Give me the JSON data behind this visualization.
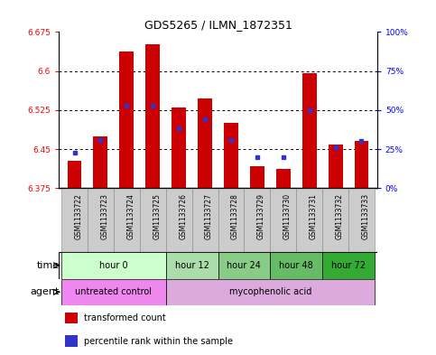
{
  "title": "GDS5265 / ILMN_1872351",
  "samples": [
    "GSM1133722",
    "GSM1133723",
    "GSM1133724",
    "GSM1133725",
    "GSM1133726",
    "GSM1133727",
    "GSM1133728",
    "GSM1133729",
    "GSM1133730",
    "GSM1133731",
    "GSM1133732",
    "GSM1133733"
  ],
  "bar_values": [
    6.428,
    6.475,
    6.637,
    6.652,
    6.53,
    6.548,
    6.5,
    6.418,
    6.412,
    6.595,
    6.458,
    6.465
  ],
  "percentile_values": [
    6.443,
    6.468,
    6.533,
    6.533,
    6.49,
    6.508,
    6.468,
    6.435,
    6.435,
    6.525,
    6.453,
    6.465
  ],
  "bar_bottom": 6.375,
  "y_min": 6.375,
  "y_max": 6.675,
  "y_ticks": [
    6.375,
    6.45,
    6.525,
    6.6,
    6.675
  ],
  "y_right_ticks": [
    0,
    25,
    50,
    75,
    100
  ],
  "bar_color": "#cc0000",
  "blue_color": "#3333cc",
  "time_groups": [
    {
      "label": "hour 0",
      "start": 0,
      "end": 4
    },
    {
      "label": "hour 12",
      "start": 4,
      "end": 6
    },
    {
      "label": "hour 24",
      "start": 6,
      "end": 8
    },
    {
      "label": "hour 48",
      "start": 8,
      "end": 10
    },
    {
      "label": "hour 72",
      "start": 10,
      "end": 12
    }
  ],
  "time_colors": [
    "#ccffcc",
    "#aaddaa",
    "#88cc88",
    "#66bb66",
    "#33aa33"
  ],
  "agent_groups": [
    {
      "label": "untreated control",
      "start": 0,
      "end": 4
    },
    {
      "label": "mycophenolic acid",
      "start": 4,
      "end": 12
    }
  ],
  "agent_colors": [
    "#ee88ee",
    "#ddaadd"
  ],
  "legend_bar_label": "transformed count",
  "legend_dot_label": "percentile rank within the sample",
  "tick_bg": "#cccccc"
}
